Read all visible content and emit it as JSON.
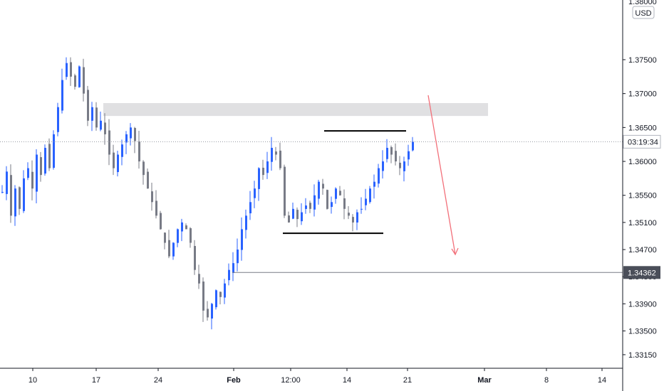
{
  "chart_data": {
    "type": "candlestick",
    "currency": "USD",
    "ylim": [
      1.3295,
      1.3838
    ],
    "yticks": [
      "1.33150",
      "1.33500",
      "1.33900",
      "1.34300",
      "1.34700",
      "1.35100",
      "1.35500",
      "1.36000",
      "1.36500",
      "1.37000",
      "1.37500"
    ],
    "ytop_partial": "1.38000",
    "xticks": [
      {
        "label": "10",
        "bold": false
      },
      {
        "label": "17",
        "bold": false
      },
      {
        "label": "24",
        "bold": false
      },
      {
        "label": "Feb",
        "bold": true
      },
      {
        "label": "12:00",
        "bold": false
      },
      {
        "label": "14",
        "bold": false
      },
      {
        "label": "21",
        "bold": false
      },
      {
        "label": "Mar",
        "bold": true
      },
      {
        "label": "8",
        "bold": false
      },
      {
        "label": "14",
        "bold": false
      }
    ],
    "current_price_label": "03:19:34",
    "current_price": 1.3629,
    "target_price_label": "1.34362",
    "target_price": 1.34362,
    "resistance_zone": [
      1.3667,
      1.3686
    ],
    "range_high": 1.3645,
    "range_low": 1.3494,
    "colors": {
      "up": "#2962ff",
      "down": "#787b86",
      "zone": "#e0e0e2",
      "arrow": "#f2707a",
      "range": "#000000",
      "target_line": "#787b86",
      "label_bg": "#4a4e59",
      "label_text": "#ffffff",
      "grid": "none"
    },
    "candles_path": [
      1.3555,
      1.3585,
      1.352,
      1.356,
      1.353,
      1.3575,
      1.359,
      1.356,
      1.361,
      1.358,
      1.362,
      1.359,
      1.364,
      1.368,
      1.372,
      1.3745,
      1.3725,
      1.371,
      1.374,
      1.37,
      1.366,
      1.368,
      1.365,
      1.366,
      1.364,
      1.361,
      1.359,
      1.361,
      1.3625,
      1.364,
      1.365,
      1.363,
      1.36,
      1.358,
      1.356,
      1.354,
      1.352,
      1.35,
      1.348,
      1.346,
      1.348,
      1.35,
      1.351,
      1.35,
      1.348,
      1.344,
      1.342,
      1.338,
      1.337,
      1.339,
      1.341,
      1.34,
      1.342,
      1.344,
      1.345,
      1.347,
      1.35,
      1.352,
      1.354,
      1.356,
      1.359,
      1.358,
      1.36,
      1.362,
      1.361,
      1.359,
      1.352,
      1.351,
      1.353,
      1.3515,
      1.3525,
      1.3535,
      1.353,
      1.355,
      1.357,
      1.356,
      1.353,
      1.354,
      1.356,
      1.355,
      1.353,
      1.352,
      1.351,
      1.3525,
      1.353,
      1.3545,
      1.356,
      1.357,
      1.359,
      1.36,
      1.362,
      1.361,
      1.36,
      1.359,
      1.36,
      1.3615,
      1.3629
    ]
  }
}
